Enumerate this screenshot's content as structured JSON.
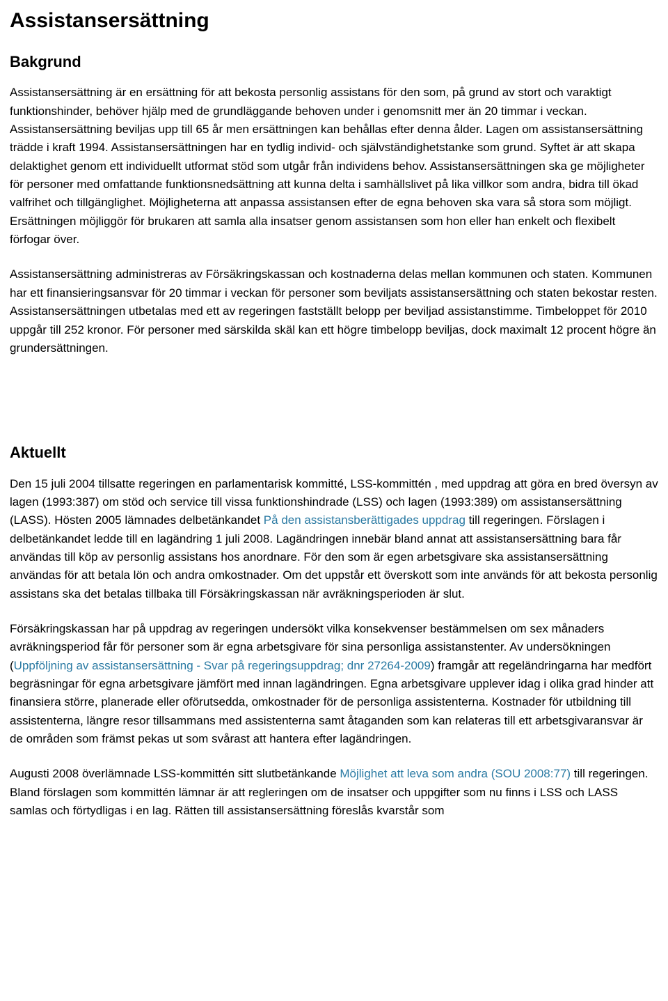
{
  "colors": {
    "text": "#000000",
    "link": "#2a7aa3",
    "background": "#ffffff"
  },
  "typography": {
    "body_font": "Trebuchet MS",
    "body_size_pt": 13,
    "title_size_pt": 22,
    "section_size_pt": 17,
    "line_height": 1.55
  },
  "title": "Assistansersättning",
  "sections": {
    "bakgrund": {
      "heading": "Bakgrund",
      "p1": "Assistansersättning är en ersättning för att bekosta personlig assistans för den som, på grund av stort och varaktigt funktionshinder, behöver hjälp med de grundläggande behoven under i genomsnitt mer än 20 timmar i veckan. Assistansersättning beviljas upp till 65 år men ersättningen kan behållas efter denna ålder. Lagen om assistansersättning trädde i kraft 1994. Assistansersättningen har en tydlig individ- och självständighetstanke som grund. Syftet är att skapa delaktighet genom ett individuellt utformat stöd som utgår från individens behov. Assistansersättningen ska ge möjligheter för personer med omfattande funktionsnedsättning att kunna delta i samhällslivet på lika villkor som andra, bidra till ökad valfrihet och tillgänglighet. Möjligheterna att anpassa assistansen efter de egna behoven ska vara så stora som möjligt. Ersättningen möjliggör för brukaren att samla alla insatser genom assistansen som hon eller han enkelt och flexibelt förfogar över.",
      "p2": "Assistansersättning administreras av Försäkringskassan och kostnaderna delas mellan kommunen och staten. Kommunen har ett finansieringsansvar för 20 timmar i veckan för personer som beviljats assistansersättning och staten bekostar resten. Assistansersättningen utbetalas med ett av regeringen fastställt belopp per beviljad assistanstimme. Timbeloppet för 2010 uppgår till 252 kronor. För personer med särskilda skäl kan ett högre timbelopp beviljas, dock maximalt 12 procent högre än grundersättningen."
    },
    "aktuellt": {
      "heading": "Aktuellt",
      "p1_a": "Den 15 juli 2004 tillsatte regeringen en parlamentarisk kommitté, LSS-kommittén , med uppdrag att göra en bred översyn av lagen (1993:387) om stöd och service till vissa funktionshindrade (LSS) och lagen (1993:389) om assistansersättning (LASS). Hösten 2005 lämnades delbetänkandet ",
      "p1_link1": "På den assistansberättigades uppdrag",
      "p1_b": " till regeringen. Förslagen i delbetänkandet ledde till en lagändring 1 juli 2008. Lagändringen innebär bland annat att assistansersättning bara får användas till köp av personlig assistans hos anordnare. För den som är egen arbetsgivare ska assistansersättning användas för att betala lön och andra omkostnader. Om det uppstår ett överskott som inte används för att bekosta personlig assistans ska det betalas tillbaka till Försäkringskassan när avräkningsperioden är slut.",
      "p2_a": "Försäkringskassan har på uppdrag av regeringen undersökt vilka konsekvenser bestämmelsen om sex månaders avräkningsperiod får för personer som är egna arbetsgivare för sina personliga assistanstenter. Av undersökningen (",
      "p2_link1": "Uppföljning av assistansersättning - Svar på regeringsuppdrag; dnr 27264-2009",
      "p2_b": ") framgår att regeländringarna har medfört begräsningar för egna arbetsgivare jämfört med innan lagändringen. Egna arbetsgivare upplever idag i olika grad hinder att finansiera större, planerade eller oförutsedda, omkostnader för de personliga assistenterna. Kostnader för utbildning till assistenterna, längre resor tillsammans med assistenterna samt åtaganden som kan relateras till ett arbetsgivaransvar är de områden som främst pekas ut som svårast att hantera efter lagändringen.",
      "p3_a": "Augusti 2008 överlämnade LSS-kommittén sitt slutbetänkande ",
      "p3_link1": "Möjlighet att leva som andra (SOU 2008:77)",
      "p3_b": " till regeringen. Bland förslagen som kommittén lämnar är att regleringen om de insatser och uppgifter som nu finns i LSS och LASS samlas och förtydligas i en lag. Rätten till assistansersättning föreslås kvarstår som"
    }
  }
}
